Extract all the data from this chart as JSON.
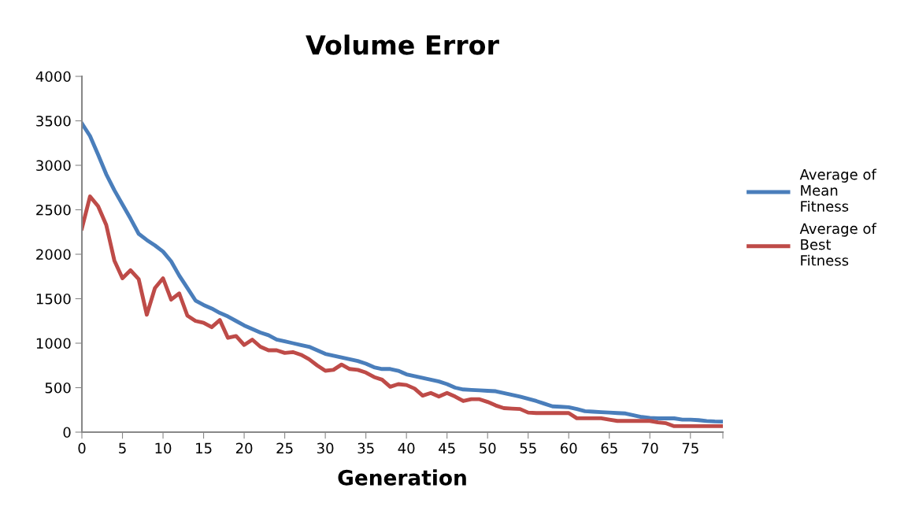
{
  "chart_data": {
    "type": "line",
    "title": "Volume Error",
    "xlabel": "Generation",
    "x": [
      0,
      1,
      2,
      3,
      4,
      5,
      6,
      7,
      8,
      9,
      10,
      11,
      12,
      13,
      14,
      15,
      16,
      17,
      18,
      19,
      20,
      21,
      22,
      23,
      24,
      25,
      26,
      27,
      28,
      29,
      30,
      31,
      32,
      33,
      34,
      35,
      36,
      37,
      38,
      39,
      40,
      41,
      42,
      43,
      44,
      45,
      46,
      47,
      48,
      49,
      50,
      51,
      52,
      53,
      54,
      55,
      56,
      57,
      58,
      59,
      60,
      61,
      62,
      63,
      64,
      65,
      66,
      67,
      68,
      69,
      70,
      71,
      72,
      73,
      74,
      75,
      76,
      77,
      78,
      79
    ],
    "series": [
      {
        "name": "Average of\nMean\nFitness",
        "color": "#4a7ebb",
        "values": [
          3470,
          3330,
          3120,
          2900,
          2720,
          2560,
          2400,
          2230,
          2160,
          2100,
          2030,
          1920,
          1760,
          1620,
          1480,
          1430,
          1390,
          1340,
          1300,
          1250,
          1200,
          1160,
          1120,
          1090,
          1040,
          1020,
          1000,
          980,
          960,
          920,
          880,
          860,
          840,
          820,
          800,
          770,
          730,
          710,
          710,
          690,
          650,
          630,
          610,
          590,
          570,
          540,
          500,
          480,
          475,
          470,
          465,
          460,
          440,
          420,
          400,
          375,
          350,
          320,
          290,
          285,
          280,
          260,
          235,
          230,
          225,
          220,
          215,
          210,
          190,
          170,
          160,
          155,
          155,
          155,
          140,
          140,
          135,
          125,
          120,
          118
        ]
      },
      {
        "name": "Average of\nBest\nFitness",
        "color": "#be4b48",
        "values": [
          2290,
          2650,
          2540,
          2330,
          1930,
          1730,
          1820,
          1720,
          1320,
          1620,
          1730,
          1490,
          1560,
          1310,
          1250,
          1230,
          1180,
          1260,
          1060,
          1080,
          980,
          1040,
          960,
          920,
          920,
          890,
          900,
          870,
          820,
          750,
          690,
          700,
          760,
          710,
          700,
          670,
          620,
          590,
          510,
          540,
          530,
          490,
          410,
          440,
          400,
          440,
          400,
          350,
          370,
          370,
          340,
          300,
          270,
          265,
          260,
          220,
          215,
          215,
          215,
          215,
          215,
          156,
          156,
          156,
          156,
          140,
          126,
          126,
          126,
          126,
          126,
          110,
          100,
          67,
          67,
          67,
          67,
          67,
          67,
          67
        ]
      }
    ],
    "xlim": [
      0,
      79
    ],
    "xticks": [
      0,
      5,
      10,
      15,
      20,
      25,
      30,
      35,
      40,
      45,
      50,
      55,
      60,
      65,
      70,
      75,
      {
        "value": 79,
        "label": null
      }
    ],
    "ylim": [
      0,
      4000
    ],
    "yticks": [
      0,
      500,
      1000,
      1500,
      2000,
      2500,
      3000,
      3500,
      4000
    ],
    "grid": false,
    "legend": "right",
    "marker": "none",
    "line_style": "solid"
  }
}
